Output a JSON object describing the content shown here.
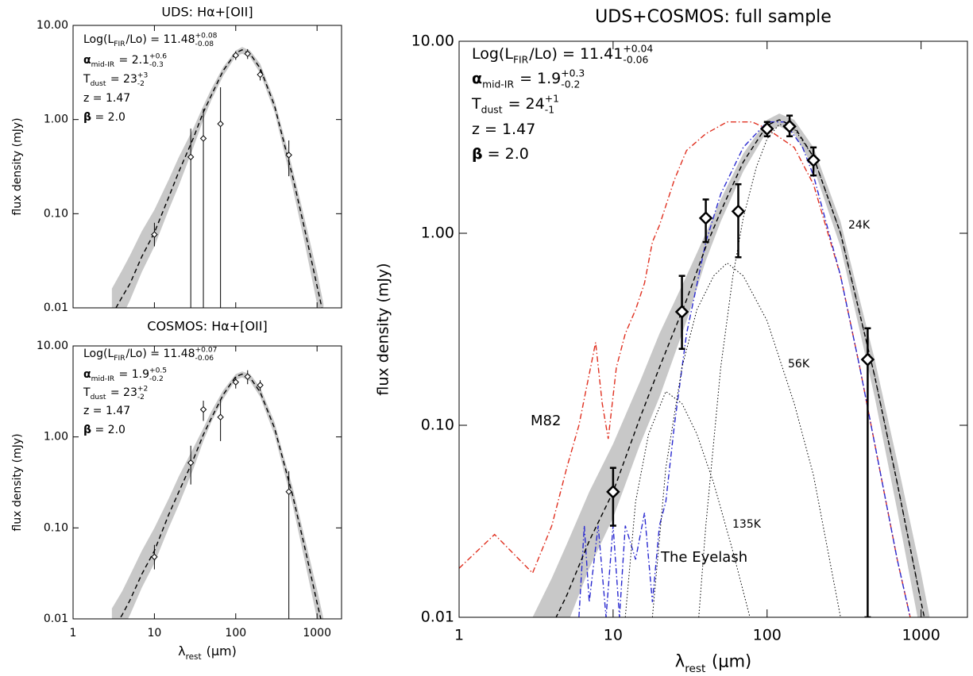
{
  "chart_data": [
    {
      "type": "line",
      "title": "UDS: Hα+[OII]",
      "ylabel": "flux density (mJy)",
      "xlim": [
        1,
        2000
      ],
      "ylim": [
        0.01,
        10
      ],
      "log_x": true,
      "log_y": true,
      "xticklabels": false,
      "xticks": [
        1,
        10,
        100,
        1000
      ],
      "yticks": [
        {
          "value": 0.01,
          "label": "0.01"
        },
        {
          "value": 0.1,
          "label": "0.10"
        },
        {
          "value": 1,
          "label": "1.00"
        },
        {
          "value": 10,
          "label": "10.00"
        }
      ],
      "stats": [
        [
          {
            "text": "Log(L"
          },
          {
            "sub": "FIR"
          },
          {
            "text": "/Lo) = 11.48"
          },
          {
            "sup": "+0.08",
            "sub": "-0.08"
          }
        ],
        [
          {
            "text": "α",
            "bold": true
          },
          {
            "sub": "mid-IR"
          },
          {
            "text": " = 2.1"
          },
          {
            "sup": "+0.6",
            "sub": "-0.3"
          }
        ],
        [
          {
            "text": "T"
          },
          {
            "sub": "dust"
          },
          {
            "text": " = 23"
          },
          {
            "sup": "+3",
            "sub": "-2"
          }
        ],
        [
          {
            "text": "z = 1.47"
          }
        ],
        [
          {
            "text": "β",
            "bold": true
          },
          {
            "text": " = 2.0"
          }
        ]
      ],
      "series": [
        {
          "style": "band",
          "color": "#c8c8c8",
          "x": [
            3,
            4,
            5,
            7,
            10,
            15,
            20,
            30,
            40,
            50,
            70,
            100,
            120,
            150,
            200,
            300,
            400,
            500,
            700,
            1000,
            1200
          ],
          "upper": [
            0.016,
            0.025,
            0.036,
            0.065,
            0.11,
            0.23,
            0.4,
            0.8,
            1.4,
            2.1,
            3.6,
            5.4,
            5.9,
            5.4,
            3.9,
            1.6,
            0.63,
            0.3,
            0.09,
            0.024,
            0.011
          ],
          "lower": [
            0.005,
            0.008,
            0.012,
            0.024,
            0.045,
            0.11,
            0.2,
            0.5,
            1.0,
            1.6,
            2.9,
            4.7,
            5.0,
            4.6,
            3.1,
            1.2,
            0.43,
            0.19,
            0.05,
            0.011,
            0.005
          ]
        },
        {
          "style": "dashed",
          "color": "#000000",
          "x": [
            3,
            4,
            5,
            7,
            10,
            15,
            20,
            30,
            40,
            50,
            70,
            100,
            120,
            150,
            200,
            300,
            400,
            500,
            700,
            1000,
            1200
          ],
          "values": [
            0.0084,
            0.013,
            0.018,
            0.035,
            0.063,
            0.15,
            0.28,
            0.63,
            1.2,
            1.8,
            3.3,
            5.1,
            5.5,
            5.0,
            3.5,
            1.4,
            0.53,
            0.25,
            0.07,
            0.017,
            0.0084
          ]
        },
        {
          "style": "markers",
          "color": "#000000",
          "x": [
            10,
            28,
            40,
            65,
            100,
            140,
            200,
            450
          ],
          "values": [
            0.06,
            0.4,
            0.63,
            0.9,
            4.8,
            5.0,
            3.0,
            0.42
          ],
          "lower": [
            0.045,
            0.01,
            0.01,
            0.01,
            4.3,
            4.4,
            2.6,
            0.25
          ],
          "upper": [
            0.08,
            0.8,
            1.3,
            2.2,
            5.3,
            5.6,
            3.4,
            0.6
          ]
        }
      ]
    },
    {
      "type": "line",
      "title": "COSMOS: Hα+[OII]",
      "ylabel": "flux density (mJy)",
      "xlabel": [
        {
          "text": "λ"
        },
        {
          "sub": "rest"
        },
        {
          "text": " (μm)"
        }
      ],
      "xlim": [
        1,
        2000
      ],
      "ylim": [
        0.01,
        10
      ],
      "log_x": true,
      "log_y": true,
      "xticklabels": true,
      "xticks": [
        1,
        10,
        100,
        1000
      ],
      "yticks": [
        {
          "value": 0.01,
          "label": "0.01"
        },
        {
          "value": 0.1,
          "label": "0.10"
        },
        {
          "value": 1,
          "label": "1.00"
        },
        {
          "value": 10,
          "label": "10.00"
        }
      ],
      "stats": [
        [
          {
            "text": "Log(L"
          },
          {
            "sub": "FIR"
          },
          {
            "text": "/Lo) = 11.48"
          },
          {
            "sup": "+0.07",
            "sub": "-0.06"
          }
        ],
        [
          {
            "text": "α",
            "bold": true
          },
          {
            "sub": "mid-IR"
          },
          {
            "text": " = 1.9"
          },
          {
            "sup": "+0.5",
            "sub": "-0.2"
          }
        ],
        [
          {
            "text": "T"
          },
          {
            "sub": "dust"
          },
          {
            "text": " = 23"
          },
          {
            "sup": "+2",
            "sub": "-2"
          }
        ],
        [
          {
            "text": "z = 1.47"
          }
        ],
        [
          {
            "text": "β",
            "bold": true
          },
          {
            "text": " = 2.0"
          }
        ]
      ],
      "series": [
        {
          "style": "band",
          "color": "#c8c8c8",
          "x": [
            3,
            4,
            5,
            7,
            10,
            15,
            20,
            30,
            40,
            50,
            70,
            100,
            120,
            150,
            200,
            300,
            400,
            500,
            700,
            1000,
            1200
          ],
          "upper": [
            0.013,
            0.02,
            0.03,
            0.056,
            0.1,
            0.21,
            0.37,
            0.75,
            1.25,
            1.9,
            3.25,
            4.9,
            5.25,
            4.9,
            3.5,
            1.45,
            0.56,
            0.28,
            0.08,
            0.021,
            0.01
          ],
          "lower": [
            0.005,
            0.0075,
            0.011,
            0.022,
            0.041,
            0.1,
            0.18,
            0.44,
            0.9,
            1.45,
            2.6,
            4.25,
            4.5,
            4.1,
            2.75,
            1.05,
            0.39,
            0.18,
            0.045,
            0.01,
            0.005
          ]
        },
        {
          "style": "dashed",
          "color": "#000000",
          "x": [
            3,
            4,
            5,
            7,
            10,
            15,
            20,
            30,
            40,
            50,
            70,
            100,
            120,
            150,
            200,
            300,
            400,
            500,
            700,
            1000,
            1200
          ],
          "values": [
            0.0075,
            0.011,
            0.016,
            0.031,
            0.056,
            0.14,
            0.25,
            0.56,
            1.06,
            1.6,
            2.9,
            4.6,
            4.9,
            4.5,
            3.1,
            1.25,
            0.48,
            0.23,
            0.063,
            0.015,
            0.0075
          ]
        },
        {
          "style": "markers",
          "color": "#000000",
          "x": [
            10,
            28,
            40,
            65,
            100,
            140,
            200,
            450
          ],
          "values": [
            0.048,
            0.52,
            2.0,
            1.65,
            4.0,
            4.6,
            3.7,
            0.25
          ],
          "lower": [
            0.035,
            0.3,
            1.5,
            0.9,
            3.4,
            3.8,
            3.2,
            0.01
          ],
          "upper": [
            0.065,
            0.8,
            2.5,
            2.5,
            4.6,
            5.4,
            4.2,
            0.42
          ]
        }
      ]
    },
    {
      "type": "line",
      "title": "UDS+COSMOS: full sample",
      "ylabel": "flux density (mJy)",
      "xlabel": [
        {
          "text": "λ"
        },
        {
          "sub": "rest"
        },
        {
          "text": " (μm)"
        }
      ],
      "xlim": [
        1,
        2000
      ],
      "ylim": [
        0.01,
        10
      ],
      "log_x": true,
      "log_y": true,
      "xticklabels": true,
      "xticks": [
        1,
        10,
        100,
        1000
      ],
      "yticks": [
        {
          "value": 0.01,
          "label": "0.01"
        },
        {
          "value": 0.1,
          "label": "0.10"
        },
        {
          "value": 1,
          "label": "1.00"
        },
        {
          "value": 10,
          "label": "10.00"
        }
      ],
      "stats": [
        [
          {
            "text": "Log(L"
          },
          {
            "sub": "FIR"
          },
          {
            "text": "/Lo) = 11.41"
          },
          {
            "sup": "+0.04",
            "sub": "-0.06"
          }
        ],
        [
          {
            "text": "α",
            "bold": true
          },
          {
            "sub": "mid-IR"
          },
          {
            "text": " = 1.9"
          },
          {
            "sup": "+0.3",
            "sub": "-0.2"
          }
        ],
        [
          {
            "text": "T"
          },
          {
            "sub": "dust"
          },
          {
            "text": " = 24"
          },
          {
            "sup": "+1",
            "sub": "-1"
          }
        ],
        [
          {
            "text": "z = 1.47"
          }
        ],
        [
          {
            "text": "β",
            "bold": true
          },
          {
            "text": " = 2.0"
          }
        ]
      ],
      "series": [
        {
          "style": "band",
          "color": "#c8c8c8",
          "x": [
            3,
            4,
            5,
            7,
            10,
            15,
            20,
            30,
            40,
            50,
            70,
            100,
            120,
            150,
            200,
            300,
            400,
            500,
            700,
            1000,
            1200
          ],
          "upper": [
            0.01,
            0.016,
            0.024,
            0.045,
            0.08,
            0.17,
            0.3,
            0.6,
            1.0,
            1.5,
            2.6,
            3.9,
            4.2,
            3.9,
            2.8,
            1.15,
            0.45,
            0.22,
            0.065,
            0.017,
            0.008
          ],
          "lower": [
            0.004,
            0.006,
            0.009,
            0.018,
            0.033,
            0.08,
            0.14,
            0.35,
            0.72,
            1.15,
            2.1,
            3.4,
            3.6,
            3.3,
            2.2,
            0.85,
            0.31,
            0.14,
            0.036,
            0.008,
            0.004
          ]
        },
        {
          "name": "M82",
          "style": "dashdot",
          "color": "#e03020",
          "x": [
            1,
            1.7,
            3,
            4,
            5,
            6,
            7.7,
            8.5,
            9.3,
            10.5,
            12,
            14,
            16,
            18,
            20,
            25,
            30,
            40,
            55,
            80,
            100,
            150,
            200,
            300,
            400,
            500,
            700,
            850
          ],
          "values": [
            0.018,
            0.027,
            0.017,
            0.03,
            0.06,
            0.1,
            0.27,
            0.13,
            0.085,
            0.2,
            0.3,
            0.4,
            0.55,
            0.9,
            1.1,
            1.9,
            2.7,
            3.3,
            3.8,
            3.8,
            3.5,
            2.8,
            1.8,
            0.6,
            0.2,
            0.08,
            0.02,
            0.01
          ]
        },
        {
          "name": "The Eyelash",
          "style": "dashdot",
          "color": "#2a2ad0",
          "x": [
            6,
            6.5,
            7,
            8,
            9,
            10,
            11,
            12,
            14,
            16,
            18,
            20,
            22,
            25,
            30,
            40,
            50,
            70,
            100,
            130,
            170,
            200,
            300,
            400,
            500,
            700,
            850
          ],
          "values": [
            0.01,
            0.03,
            0.012,
            0.03,
            0.01,
            0.03,
            0.01,
            0.03,
            0.02,
            0.035,
            0.012,
            0.03,
            0.04,
            0.1,
            0.3,
            0.9,
            1.6,
            2.8,
            3.8,
            3.8,
            2.8,
            2.0,
            0.6,
            0.2,
            0.08,
            0.02,
            0.01
          ]
        },
        {
          "name": "135K",
          "style": "dotted",
          "color": "#000000",
          "x": [
            12,
            14,
            17,
            22,
            28,
            35,
            45,
            60,
            80
          ],
          "values": [
            0.01,
            0.04,
            0.09,
            0.15,
            0.13,
            0.09,
            0.05,
            0.022,
            0.009
          ]
        },
        {
          "name": "56K",
          "style": "dotted",
          "color": "#000000",
          "x": [
            18,
            22,
            28,
            35,
            45,
            55,
            70,
            100,
            150,
            200,
            300
          ],
          "values": [
            0.01,
            0.06,
            0.2,
            0.4,
            0.6,
            0.7,
            0.6,
            0.35,
            0.13,
            0.055,
            0.01
          ]
        },
        {
          "name": "24K",
          "style": "dotted",
          "color": "#000000",
          "x": [
            36,
            40,
            50,
            60,
            70,
            85,
            100,
            120,
            150,
            200,
            300,
            400,
            500,
            700,
            1000
          ],
          "values": [
            0.01,
            0.03,
            0.2,
            0.6,
            1.2,
            2.2,
            3.1,
            3.7,
            3.5,
            2.5,
            1.0,
            0.38,
            0.18,
            0.05,
            0.012
          ]
        },
        {
          "style": "dashed",
          "color": "#000000",
          "x": [
            3,
            4,
            5,
            7,
            10,
            15,
            20,
            30,
            40,
            50,
            70,
            100,
            120,
            150,
            200,
            300,
            400,
            500,
            700,
            1000,
            1200
          ],
          "values": [
            0.006,
            0.009,
            0.013,
            0.025,
            0.045,
            0.11,
            0.2,
            0.45,
            0.85,
            1.3,
            2.35,
            3.65,
            3.9,
            3.6,
            2.5,
            1.0,
            0.38,
            0.18,
            0.05,
            0.012,
            0.006
          ]
        },
        {
          "style": "markers",
          "color": "#000000",
          "x": [
            10,
            28,
            40,
            65,
            100,
            140,
            200,
            450
          ],
          "values": [
            0.045,
            0.39,
            1.2,
            1.3,
            3.5,
            3.6,
            2.4,
            0.22
          ],
          "lower": [
            0.03,
            0.25,
            0.9,
            0.75,
            3.2,
            3.2,
            2.0,
            0.01
          ],
          "upper": [
            0.06,
            0.6,
            1.5,
            1.8,
            3.8,
            4.1,
            2.8,
            0.32
          ]
        }
      ]
    }
  ]
}
